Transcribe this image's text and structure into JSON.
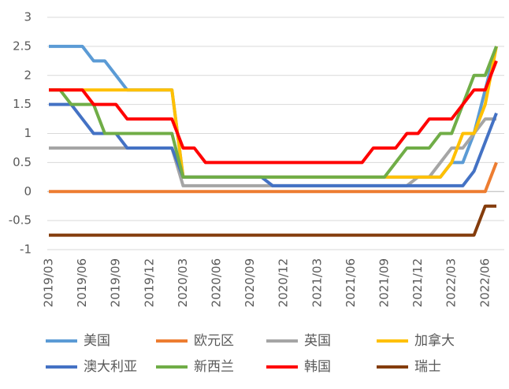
{
  "chart_data": {
    "type": "line",
    "categories": [
      "2019/03",
      null,
      null,
      "2019/06",
      null,
      null,
      "2019/09",
      null,
      null,
      "2019/12",
      null,
      null,
      "2020/03",
      null,
      null,
      "2020/06",
      null,
      null,
      "2020/09",
      null,
      null,
      "2020/12",
      null,
      null,
      "2021/03",
      null,
      null,
      "2021/06",
      null,
      null,
      "2021/09",
      null,
      null,
      "2021/12",
      null,
      null,
      "2022/03",
      null,
      null,
      "2022/06",
      null
    ],
    "ylim": [
      -1,
      3
    ],
    "yticks": [
      -1,
      -0.5,
      0,
      0.5,
      1,
      1.5,
      2,
      2.5,
      3
    ],
    "grid": true,
    "series": [
      {
        "name": "美国",
        "color": "#5b9bd5",
        "values": [
          2.5,
          2.5,
          2.5,
          2.5,
          2.25,
          2.25,
          2.0,
          1.75,
          1.75,
          1.75,
          1.75,
          1.75,
          0.25,
          0.25,
          0.25,
          0.25,
          0.25,
          0.25,
          0.25,
          0.25,
          0.25,
          0.25,
          0.25,
          0.25,
          0.25,
          0.25,
          0.25,
          0.25,
          0.25,
          0.25,
          0.25,
          0.25,
          0.25,
          0.25,
          0.25,
          0.25,
          0.5,
          0.5,
          1.0,
          1.75,
          2.5
        ]
      },
      {
        "name": "欧元区",
        "color": "#ed7d31",
        "values": [
          0,
          0,
          0,
          0,
          0,
          0,
          0,
          0,
          0,
          0,
          0,
          0,
          0,
          0,
          0,
          0,
          0,
          0,
          0,
          0,
          0,
          0,
          0,
          0,
          0,
          0,
          0,
          0,
          0,
          0,
          0,
          0,
          0,
          0,
          0,
          0,
          0,
          0,
          0,
          0,
          0.5
        ]
      },
      {
        "name": "英国",
        "color": "#a5a5a5",
        "values": [
          0.75,
          0.75,
          0.75,
          0.75,
          0.75,
          0.75,
          0.75,
          0.75,
          0.75,
          0.75,
          0.75,
          0.75,
          0.1,
          0.1,
          0.1,
          0.1,
          0.1,
          0.1,
          0.1,
          0.1,
          0.1,
          0.1,
          0.1,
          0.1,
          0.1,
          0.1,
          0.1,
          0.1,
          0.1,
          0.1,
          0.1,
          0.1,
          0.1,
          0.25,
          0.25,
          0.5,
          0.75,
          0.75,
          1.0,
          1.25,
          1.25
        ]
      },
      {
        "name": "加拿大",
        "color": "#ffc000",
        "values": [
          1.75,
          1.75,
          1.75,
          1.75,
          1.75,
          1.75,
          1.75,
          1.75,
          1.75,
          1.75,
          1.75,
          1.75,
          0.25,
          0.25,
          0.25,
          0.25,
          0.25,
          0.25,
          0.25,
          0.25,
          0.25,
          0.25,
          0.25,
          0.25,
          0.25,
          0.25,
          0.25,
          0.25,
          0.25,
          0.25,
          0.25,
          0.25,
          0.25,
          0.25,
          0.25,
          0.25,
          0.5,
          1.0,
          1.0,
          1.5,
          2.5
        ]
      },
      {
        "name": "澳大利亚",
        "color": "#4472c4",
        "values": [
          1.5,
          1.5,
          1.5,
          1.25,
          1.0,
          1.0,
          1.0,
          0.75,
          0.75,
          0.75,
          0.75,
          0.75,
          0.25,
          0.25,
          0.25,
          0.25,
          0.25,
          0.25,
          0.25,
          0.25,
          0.1,
          0.1,
          0.1,
          0.1,
          0.1,
          0.1,
          0.1,
          0.1,
          0.1,
          0.1,
          0.1,
          0.1,
          0.1,
          0.1,
          0.1,
          0.1,
          0.1,
          0.1,
          0.35,
          0.85,
          1.35
        ]
      },
      {
        "name": "新西兰",
        "color": "#70ad47",
        "values": [
          1.75,
          1.75,
          1.5,
          1.5,
          1.5,
          1.0,
          1.0,
          1.0,
          1.0,
          1.0,
          1.0,
          1.0,
          0.25,
          0.25,
          0.25,
          0.25,
          0.25,
          0.25,
          0.25,
          0.25,
          0.25,
          0.25,
          0.25,
          0.25,
          0.25,
          0.25,
          0.25,
          0.25,
          0.25,
          0.25,
          0.25,
          0.5,
          0.75,
          0.75,
          0.75,
          1.0,
          1.0,
          1.5,
          2.0,
          2.0,
          2.5
        ]
      },
      {
        "name": "韩国",
        "color": "#ff0000",
        "values": [
          1.75,
          1.75,
          1.75,
          1.75,
          1.5,
          1.5,
          1.5,
          1.25,
          1.25,
          1.25,
          1.25,
          1.25,
          0.75,
          0.75,
          0.5,
          0.5,
          0.5,
          0.5,
          0.5,
          0.5,
          0.5,
          0.5,
          0.5,
          0.5,
          0.5,
          0.5,
          0.5,
          0.5,
          0.5,
          0.75,
          0.75,
          0.75,
          1.0,
          1.0,
          1.25,
          1.25,
          1.25,
          1.5,
          1.75,
          1.75,
          2.25
        ]
      },
      {
        "name": "瑞士",
        "color": "#843c0c",
        "values": [
          -0.75,
          -0.75,
          -0.75,
          -0.75,
          -0.75,
          -0.75,
          -0.75,
          -0.75,
          -0.75,
          -0.75,
          -0.75,
          -0.75,
          -0.75,
          -0.75,
          -0.75,
          -0.75,
          -0.75,
          -0.75,
          -0.75,
          -0.75,
          -0.75,
          -0.75,
          -0.75,
          -0.75,
          -0.75,
          -0.75,
          -0.75,
          -0.75,
          -0.75,
          -0.75,
          -0.75,
          -0.75,
          -0.75,
          -0.75,
          -0.75,
          -0.75,
          -0.75,
          -0.75,
          -0.75,
          -0.25,
          -0.25
        ]
      }
    ]
  }
}
